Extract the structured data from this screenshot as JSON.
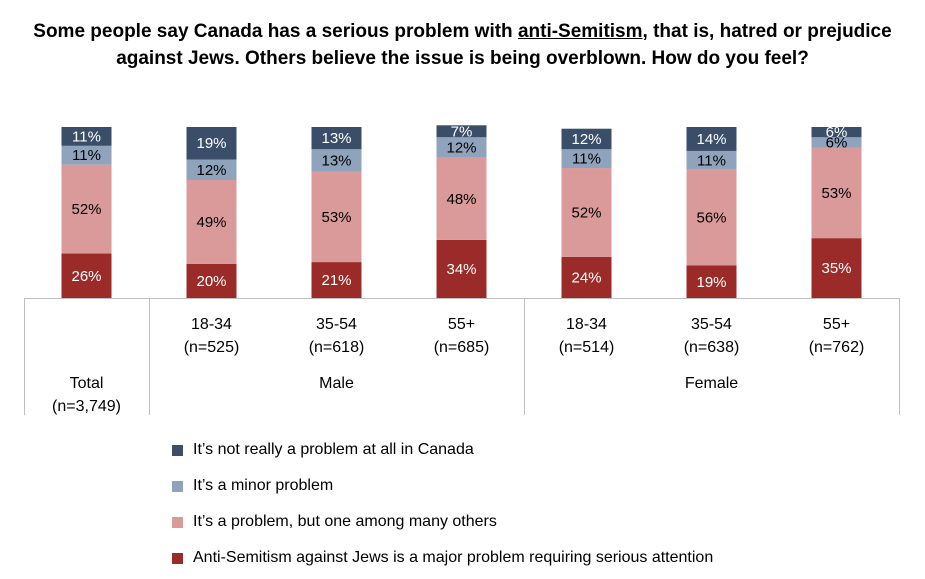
{
  "title": {
    "before": "Some people say Canada has a serious problem with ",
    "underlined": "anti-Semitism",
    "after": ", that is, hatred or prejudice against Jews. Others believe the issue is being overblown. How do you feel?"
  },
  "chart_data": {
    "type": "bar",
    "stacked": true,
    "ylim": [
      0,
      100
    ],
    "categories": [
      {
        "label": "Total",
        "n": "(n=3,749)",
        "group": ""
      },
      {
        "label": "18-34",
        "n": "(n=525)",
        "group": "Male"
      },
      {
        "label": "35-54",
        "n": "(n=618)",
        "group": "Male"
      },
      {
        "label": "55+",
        "n": "(n=685)",
        "group": "Male"
      },
      {
        "label": "18-34",
        "n": "(n=514)",
        "group": "Female"
      },
      {
        "label": "35-54",
        "n": "(n=638)",
        "group": "Female"
      },
      {
        "label": "55+",
        "n": "(n=762)",
        "group": "Female"
      }
    ],
    "groups": [
      "Male",
      "Female"
    ],
    "series": [
      {
        "name": "Anti-Semitism against Jews is a major problem requiring serious attention",
        "color": "#9b2b28",
        "values": [
          26,
          20,
          21,
          34,
          24,
          19,
          35
        ]
      },
      {
        "name": "It’s a problem, but one among many others",
        "color": "#da9a9a",
        "values": [
          52,
          49,
          53,
          48,
          52,
          56,
          53
        ]
      },
      {
        "name": "It’s a minor problem",
        "color": "#8fa3bd",
        "values": [
          11,
          12,
          13,
          12,
          11,
          11,
          6
        ]
      },
      {
        "name": "It’s not really a problem at all in Canada",
        "color": "#3b4e69",
        "values": [
          11,
          19,
          13,
          7,
          12,
          14,
          6
        ]
      }
    ],
    "legend_order": [
      3,
      2,
      1,
      0
    ],
    "value_suffix": "%"
  }
}
